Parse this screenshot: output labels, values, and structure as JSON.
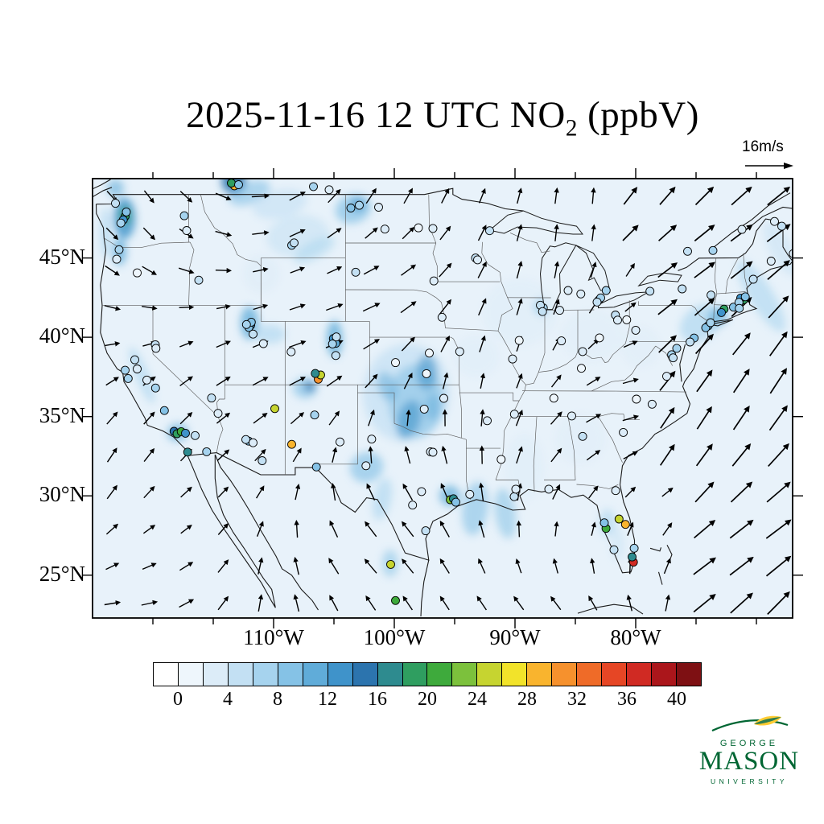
{
  "title": {
    "prefix": "2025-11-16 12 UTC NO",
    "sub": "2",
    "suffix": " (ppbV)"
  },
  "wind_reference": {
    "label": "16m/s",
    "speed_ms": 16
  },
  "map_axes": {
    "lat_labels": [
      {
        "text": "45°N",
        "lat": 45
      },
      {
        "text": "40°N",
        "lat": 40
      },
      {
        "text": "35°N",
        "lat": 35
      },
      {
        "text": "30°N",
        "lat": 30
      },
      {
        "text": "25°N",
        "lat": 25
      }
    ],
    "lon_labels": [
      {
        "text": "110°W",
        "lon": -110
      },
      {
        "text": "100°W",
        "lon": -100
      },
      {
        "text": "90°W",
        "lon": -90
      },
      {
        "text": "80°W",
        "lon": -80
      }
    ]
  },
  "colorbar": {
    "tick_labels": [
      "0",
      "4",
      "8",
      "12",
      "16",
      "20",
      "24",
      "28",
      "32",
      "36",
      "40"
    ],
    "value_step": 2,
    "colors": [
      "#ffffff",
      "#eef6fc",
      "#dcecf8",
      "#c3e0f3",
      "#a6d3ee",
      "#85c2e6",
      "#60acd9",
      "#3f93ca",
      "#2c74ae",
      "#2e8b8f",
      "#2f9e60",
      "#3eaa3c",
      "#7cc13c",
      "#c6d430",
      "#f2e32a",
      "#f9b42e",
      "#f6912d",
      "#ef6b28",
      "#e64625",
      "#d02a23",
      "#ab161b",
      "#7e1013"
    ]
  },
  "logo": {
    "line1": "GEORGE",
    "line2": "MASON",
    "line3": "UNIVERSITY",
    "green": "#006633",
    "gold": "#ffcc33"
  },
  "chart_data": {
    "type": "heatmap",
    "title": "2025-11-16 12 UTC NO2 (ppbV)",
    "variable": "NO2",
    "units": "ppbV",
    "datetime_utc": "2025-11-16 12:00",
    "wind_reference_ms": 16,
    "colorbar_ticks": [
      0,
      4,
      8,
      12,
      16,
      20,
      24,
      28,
      32,
      36,
      40
    ],
    "extent": {
      "lon": [
        -125,
        -67
      ],
      "lat": [
        22.3,
        50
      ]
    },
    "plumes": [
      [
        -122.35,
        47.5,
        0.9,
        1.3,
        0,
        12,
        0.8
      ],
      [
        -122.3,
        47.65,
        0.4,
        0.55,
        0,
        18,
        0.8
      ],
      [
        -122.75,
        45.4,
        0.55,
        0.85,
        0,
        10,
        0.75
      ],
      [
        -123.9,
        46.6,
        0.45,
        1.6,
        0,
        7,
        0.55
      ],
      [
        -123.1,
        49.4,
        0.7,
        0.55,
        0,
        10,
        0.6
      ],
      [
        -113.3,
        49.8,
        1.0,
        0.8,
        -25,
        15,
        0.85
      ],
      [
        -112.0,
        49.1,
        1.8,
        0.7,
        -20,
        8,
        0.6
      ],
      [
        -109.5,
        48.4,
        2.3,
        0.9,
        -12,
        5,
        0.6
      ],
      [
        -103.4,
        48.1,
        1.5,
        0.9,
        -18,
        9,
        0.7
      ],
      [
        -103.0,
        48.35,
        0.55,
        0.4,
        0,
        13,
        0.75
      ],
      [
        -108.0,
        46.4,
        2.6,
        1.3,
        -8,
        4,
        0.55
      ],
      [
        -106.6,
        45.5,
        1.9,
        0.55,
        -28,
        7,
        0.5
      ],
      [
        -111.0,
        44.0,
        1.5,
        1.2,
        0,
        3,
        0.5
      ],
      [
        -112.0,
        40.9,
        0.75,
        1.05,
        0,
        11,
        0.75
      ],
      [
        -110.3,
        40.2,
        1.3,
        0.6,
        0,
        7,
        0.55
      ],
      [
        -104.95,
        39.9,
        0.65,
        1.15,
        0,
        11,
        0.75
      ],
      [
        -107.4,
        36.8,
        1.0,
        0.65,
        0,
        9,
        0.65
      ],
      [
        -107.0,
        36.9,
        0.45,
        0.35,
        0,
        15,
        0.7
      ],
      [
        -99.0,
        36.5,
        3.6,
        3.1,
        8,
        5,
        0.7
      ],
      [
        -98.2,
        36.0,
        2.3,
        2.3,
        0,
        8,
        0.6
      ],
      [
        -97.3,
        37.8,
        0.85,
        1.1,
        0,
        12,
        0.6
      ],
      [
        -98.8,
        34.8,
        0.95,
        1.25,
        18,
        12,
        0.6
      ],
      [
        -96.8,
        35.6,
        0.6,
        0.85,
        0,
        11,
        0.5
      ],
      [
        -100.6,
        36.9,
        0.75,
        0.95,
        -18,
        10,
        0.5
      ],
      [
        -102.3,
        31.8,
        1.4,
        0.95,
        -20,
        9,
        0.65
      ],
      [
        -101.0,
        29.8,
        0.75,
        1.35,
        12,
        7,
        0.55
      ],
      [
        -95.4,
        30.0,
        0.85,
        0.65,
        0,
        11,
        0.7
      ],
      [
        -93.3,
        29.2,
        1.05,
        1.7,
        8,
        8,
        0.6
      ],
      [
        -90.8,
        28.9,
        0.85,
        1.6,
        -8,
        9,
        0.55
      ],
      [
        -89.2,
        31.8,
        1.6,
        2.1,
        0,
        3,
        0.45
      ],
      [
        -84.6,
        33.6,
        2.1,
        1.6,
        0,
        2,
        0.4
      ],
      [
        -82.35,
        28.3,
        0.65,
        0.85,
        0,
        7,
        0.55
      ],
      [
        -81.5,
        27.0,
        0.55,
        1.05,
        0,
        5,
        0.45
      ],
      [
        -89.6,
        41.6,
        3.1,
        2.1,
        0,
        2,
        0.45
      ],
      [
        -87.8,
        41.9,
        0.65,
        0.55,
        0,
        8,
        0.55
      ],
      [
        -83.6,
        40.1,
        2.6,
        1.6,
        0,
        2,
        0.4
      ],
      [
        -74.6,
        40.9,
        1.9,
        1.05,
        -38,
        7,
        0.6
      ],
      [
        -73.2,
        41.3,
        0.9,
        0.55,
        -35,
        11,
        0.65
      ],
      [
        -69.6,
        42.6,
        1.0,
        2.6,
        -32,
        6,
        0.55
      ],
      [
        -68.0,
        45.6,
        0.9,
        1.9,
        -28,
        4,
        0.5
      ],
      [
        -120.9,
        37.6,
        0.55,
        1.9,
        -22,
        7,
        0.55
      ],
      [
        -117.95,
        34.0,
        0.85,
        0.55,
        -8,
        10,
        0.65
      ],
      [
        -100.35,
        25.75,
        0.65,
        0.85,
        0,
        9,
        0.55
      ],
      [
        -79.6,
        39.4,
        1.6,
        1.3,
        0,
        2,
        0.4
      ],
      [
        -93.2,
        38.8,
        1.9,
        1.3,
        0,
        3,
        0.45
      ]
    ],
    "stations": [
      [
        -122.3,
        47.62,
        18
      ],
      [
        -122.45,
        47.4,
        13
      ],
      [
        -122.2,
        47.9,
        9
      ],
      [
        -122.65,
        47.2,
        7
      ],
      [
        -123.1,
        48.45,
        5
      ],
      [
        -122.8,
        45.52,
        7
      ],
      [
        -123.0,
        44.92,
        3
      ],
      [
        -121.3,
        44.06,
        1
      ],
      [
        -117.4,
        47.66,
        6
      ],
      [
        -117.2,
        46.73,
        2
      ],
      [
        -116.2,
        43.6,
        4
      ],
      [
        -119.8,
        39.53,
        4
      ],
      [
        -119.75,
        39.3,
        2
      ],
      [
        -121.5,
        38.58,
        5
      ],
      [
        -122.3,
        37.92,
        6
      ],
      [
        -122.05,
        37.4,
        7
      ],
      [
        -121.3,
        38.0,
        3
      ],
      [
        -120.5,
        37.3,
        2
      ],
      [
        -119.78,
        36.8,
        7
      ],
      [
        -119.05,
        35.38,
        9
      ],
      [
        -118.25,
        34.07,
        14
      ],
      [
        -118.0,
        33.92,
        18
      ],
      [
        -117.65,
        34.05,
        21
      ],
      [
        -117.3,
        33.95,
        12
      ],
      [
        -117.12,
        32.76,
        16
      ],
      [
        -116.5,
        33.8,
        5
      ],
      [
        -115.55,
        32.78,
        7
      ],
      [
        -115.14,
        36.17,
        5
      ],
      [
        -114.6,
        35.2,
        2
      ],
      [
        -112.07,
        33.45,
        8
      ],
      [
        -112.3,
        33.55,
        5
      ],
      [
        -111.7,
        33.35,
        3
      ],
      [
        -110.95,
        32.22,
        5
      ],
      [
        -111.9,
        40.76,
        12
      ],
      [
        -112.05,
        40.62,
        9
      ],
      [
        -111.85,
        40.95,
        8
      ],
      [
        -112.25,
        40.8,
        6
      ],
      [
        -111.7,
        40.2,
        4
      ],
      [
        -110.85,
        39.6,
        2
      ],
      [
        -108.55,
        39.08,
        3
      ],
      [
        -113.25,
        49.55,
        29
      ],
      [
        -113.5,
        49.72,
        18
      ],
      [
        -112.9,
        49.62,
        9
      ],
      [
        -106.7,
        49.5,
        6
      ],
      [
        -105.4,
        49.3,
        3
      ],
      [
        -104.95,
        39.75,
        19
      ],
      [
        -105.05,
        39.92,
        13
      ],
      [
        -104.85,
        39.62,
        10
      ],
      [
        -105.12,
        39.58,
        7
      ],
      [
        -104.8,
        40.02,
        5
      ],
      [
        -104.85,
        38.85,
        5
      ],
      [
        -106.6,
        35.1,
        6
      ],
      [
        -106.3,
        37.35,
        31
      ],
      [
        -106.1,
        37.62,
        24
      ],
      [
        -106.55,
        37.72,
        17
      ],
      [
        -109.9,
        35.5,
        24
      ],
      [
        -108.5,
        33.25,
        29
      ],
      [
        -106.45,
        31.82,
        8
      ],
      [
        -104.5,
        33.4,
        2
      ],
      [
        -108.5,
        45.8,
        7
      ],
      [
        -108.3,
        45.95,
        4
      ],
      [
        -103.6,
        48.15,
        8
      ],
      [
        -102.9,
        48.32,
        6
      ],
      [
        -101.3,
        48.2,
        3
      ],
      [
        -100.78,
        46.82,
        2
      ],
      [
        -98.0,
        46.9,
        1
      ],
      [
        -96.8,
        46.86,
        3
      ],
      [
        -103.2,
        44.1,
        4
      ],
      [
        -96.72,
        43.55,
        3
      ],
      [
        -96.05,
        41.26,
        2
      ],
      [
        -93.27,
        45.0,
        5
      ],
      [
        -93.1,
        44.88,
        3
      ],
      [
        -92.1,
        46.72,
        4
      ],
      [
        -99.9,
        38.4,
        1
      ],
      [
        -97.1,
        39.0,
        1
      ],
      [
        -94.58,
        39.1,
        2
      ],
      [
        -90.2,
        38.63,
        3
      ],
      [
        -97.33,
        37.7,
        1
      ],
      [
        -97.52,
        35.47,
        2
      ],
      [
        -95.9,
        36.15,
        2
      ],
      [
        -92.3,
        34.74,
        2
      ],
      [
        -90.05,
        35.15,
        2
      ],
      [
        -90.07,
        29.95,
        5
      ],
      [
        -89.93,
        30.42,
        3
      ],
      [
        -95.36,
        29.76,
        23
      ],
      [
        -95.1,
        29.82,
        17
      ],
      [
        -94.9,
        29.6,
        8
      ],
      [
        -97.4,
        27.8,
        4
      ],
      [
        -97.0,
        32.78,
        2
      ],
      [
        -96.8,
        32.75,
        3
      ],
      [
        -98.49,
        29.42,
        2
      ],
      [
        -97.74,
        30.27,
        2
      ],
      [
        -101.87,
        33.58,
        2
      ],
      [
        -102.35,
        31.9,
        3
      ],
      [
        -100.3,
        25.68,
        25
      ],
      [
        -99.9,
        23.4,
        20
      ],
      [
        -87.2,
        30.42,
        2
      ],
      [
        -93.75,
        30.1,
        2
      ],
      [
        -91.15,
        32.3,
        1
      ],
      [
        -86.78,
        36.16,
        1
      ],
      [
        -87.65,
        41.85,
        7
      ],
      [
        -87.9,
        42.02,
        5
      ],
      [
        -87.72,
        41.62,
        4
      ],
      [
        -86.3,
        41.7,
        3
      ],
      [
        -85.6,
        42.95,
        2
      ],
      [
        -84.55,
        42.73,
        3
      ],
      [
        -83.05,
        42.35,
        9
      ],
      [
        -82.9,
        42.48,
        7
      ],
      [
        -83.2,
        42.22,
        5
      ],
      [
        -82.45,
        42.95,
        6
      ],
      [
        -81.68,
        41.4,
        5
      ],
      [
        -81.5,
        41.08,
        3
      ],
      [
        -80.0,
        40.44,
        2
      ],
      [
        -80.75,
        41.1,
        1
      ],
      [
        -84.4,
        39.1,
        2
      ],
      [
        -84.5,
        38.04,
        1
      ],
      [
        -86.15,
        39.77,
        2
      ],
      [
        -89.65,
        39.8,
        1
      ],
      [
        -83.0,
        39.96,
        1
      ],
      [
        -84.39,
        33.75,
        4
      ],
      [
        -85.3,
        35.04,
        2
      ],
      [
        -81.03,
        34.0,
        2
      ],
      [
        -79.94,
        36.1,
        1
      ],
      [
        -78.64,
        35.78,
        2
      ],
      [
        -77.43,
        37.54,
        2
      ],
      [
        -77.03,
        38.9,
        6
      ],
      [
        -76.6,
        39.3,
        7
      ],
      [
        -76.9,
        38.7,
        4
      ],
      [
        -75.16,
        39.95,
        8
      ],
      [
        -75.5,
        39.7,
        5
      ],
      [
        -74.0,
        40.72,
        11
      ],
      [
        -74.2,
        40.6,
        8
      ],
      [
        -73.8,
        40.92,
        7
      ],
      [
        -72.68,
        41.77,
        19
      ],
      [
        -72.9,
        41.56,
        12
      ],
      [
        -71.9,
        41.9,
        8
      ],
      [
        -71.06,
        42.36,
        18
      ],
      [
        -71.3,
        42.47,
        12
      ],
      [
        -70.92,
        42.55,
        8
      ],
      [
        -71.45,
        42.2,
        6
      ],
      [
        -71.42,
        41.82,
        6
      ],
      [
        -70.26,
        43.66,
        4
      ],
      [
        -68.78,
        44.8,
        2
      ],
      [
        -66.95,
        45.27,
        3
      ],
      [
        -67.9,
        47.0,
        5
      ],
      [
        -68.5,
        47.3,
        2
      ],
      [
        -78.82,
        42.9,
        5
      ],
      [
        -76.15,
        43.05,
        4
      ],
      [
        -73.76,
        42.66,
        4
      ],
      [
        -73.6,
        45.47,
        6
      ],
      [
        -75.7,
        45.42,
        4
      ],
      [
        -71.2,
        46.8,
        3
      ],
      [
        -81.66,
        30.33,
        3
      ],
      [
        -82.46,
        27.95,
        21
      ],
      [
        -81.38,
        28.54,
        25
      ],
      [
        -80.85,
        28.2,
        29
      ],
      [
        -80.19,
        25.82,
        37
      ],
      [
        -80.3,
        26.15,
        17
      ],
      [
        -80.13,
        26.7,
        7
      ],
      [
        -81.8,
        26.6,
        4
      ],
      [
        -82.6,
        28.3,
        8
      ]
    ]
  }
}
